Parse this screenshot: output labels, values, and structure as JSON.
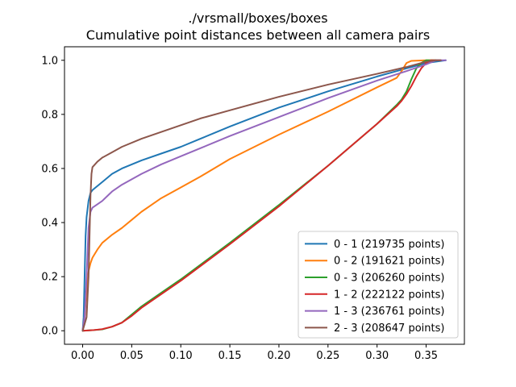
{
  "chart_data": {
    "type": "line",
    "title": "./vrsmall/boxes/boxes",
    "subtitle": "Cumulative point distances between all camera pairs",
    "xlabel": "",
    "ylabel": "",
    "xlim": [
      -0.0185,
      0.389
    ],
    "ylim": [
      -0.05,
      1.05
    ],
    "xticks": [
      0.0,
      0.05,
      0.1,
      0.15,
      0.2,
      0.25,
      0.3,
      0.35
    ],
    "xtick_labels": [
      "0.00",
      "0.05",
      "0.10",
      "0.15",
      "0.20",
      "0.25",
      "0.30",
      "0.35"
    ],
    "yticks": [
      0.0,
      0.2,
      0.4,
      0.6,
      0.8,
      1.0
    ],
    "ytick_labels": [
      "0.0",
      "0.2",
      "0.4",
      "0.6",
      "0.8",
      "1.0"
    ],
    "grid": false,
    "legend_position": "lower-right",
    "series": [
      {
        "name": "0 - 1 (219735 points)",
        "color": "#1f77b4",
        "points": [
          [
            0.0,
            0.0
          ],
          [
            0.001,
            0.05
          ],
          [
            0.002,
            0.2
          ],
          [
            0.003,
            0.35
          ],
          [
            0.004,
            0.42
          ],
          [
            0.006,
            0.48
          ],
          [
            0.008,
            0.51
          ],
          [
            0.01,
            0.52
          ],
          [
            0.02,
            0.55
          ],
          [
            0.03,
            0.58
          ],
          [
            0.04,
            0.6
          ],
          [
            0.06,
            0.63
          ],
          [
            0.08,
            0.655
          ],
          [
            0.1,
            0.68
          ],
          [
            0.12,
            0.71
          ],
          [
            0.15,
            0.755
          ],
          [
            0.2,
            0.825
          ],
          [
            0.25,
            0.885
          ],
          [
            0.3,
            0.94
          ],
          [
            0.33,
            0.97
          ],
          [
            0.35,
            0.99
          ],
          [
            0.37,
            1.0
          ]
        ]
      },
      {
        "name": "0 - 2 (191621 points)",
        "color": "#ff7f0e",
        "points": [
          [
            0.0,
            0.0
          ],
          [
            0.002,
            0.05
          ],
          [
            0.004,
            0.15
          ],
          [
            0.006,
            0.22
          ],
          [
            0.008,
            0.25
          ],
          [
            0.01,
            0.27
          ],
          [
            0.015,
            0.3
          ],
          [
            0.02,
            0.325
          ],
          [
            0.03,
            0.355
          ],
          [
            0.04,
            0.38
          ],
          [
            0.05,
            0.41
          ],
          [
            0.06,
            0.44
          ],
          [
            0.08,
            0.49
          ],
          [
            0.1,
            0.53
          ],
          [
            0.12,
            0.57
          ],
          [
            0.15,
            0.635
          ],
          [
            0.2,
            0.725
          ],
          [
            0.25,
            0.81
          ],
          [
            0.3,
            0.9
          ],
          [
            0.32,
            0.935
          ],
          [
            0.325,
            0.96
          ],
          [
            0.33,
            0.99
          ],
          [
            0.335,
            0.998
          ],
          [
            0.35,
            1.0
          ],
          [
            0.36,
            1.0
          ]
        ]
      },
      {
        "name": "0 - 3 (206260 points)",
        "color": "#2ca02c",
        "points": [
          [
            0.0,
            0.0
          ],
          [
            0.01,
            0.002
          ],
          [
            0.02,
            0.005
          ],
          [
            0.03,
            0.015
          ],
          [
            0.04,
            0.03
          ],
          [
            0.05,
            0.06
          ],
          [
            0.06,
            0.09
          ],
          [
            0.08,
            0.14
          ],
          [
            0.1,
            0.19
          ],
          [
            0.15,
            0.325
          ],
          [
            0.2,
            0.465
          ],
          [
            0.25,
            0.61
          ],
          [
            0.3,
            0.765
          ],
          [
            0.32,
            0.835
          ],
          [
            0.325,
            0.855
          ],
          [
            0.33,
            0.885
          ],
          [
            0.335,
            0.93
          ],
          [
            0.34,
            0.97
          ],
          [
            0.345,
            0.99
          ],
          [
            0.35,
            1.0
          ],
          [
            0.36,
            1.0
          ]
        ]
      },
      {
        "name": "1 - 2 (222122 points)",
        "color": "#d62728",
        "points": [
          [
            0.0,
            0.0
          ],
          [
            0.01,
            0.002
          ],
          [
            0.02,
            0.006
          ],
          [
            0.03,
            0.015
          ],
          [
            0.04,
            0.03
          ],
          [
            0.05,
            0.055
          ],
          [
            0.06,
            0.085
          ],
          [
            0.08,
            0.135
          ],
          [
            0.1,
            0.185
          ],
          [
            0.15,
            0.32
          ],
          [
            0.2,
            0.46
          ],
          [
            0.25,
            0.61
          ],
          [
            0.3,
            0.765
          ],
          [
            0.32,
            0.83
          ],
          [
            0.325,
            0.85
          ],
          [
            0.33,
            0.875
          ],
          [
            0.335,
            0.905
          ],
          [
            0.34,
            0.94
          ],
          [
            0.345,
            0.97
          ],
          [
            0.35,
            0.99
          ],
          [
            0.355,
            1.0
          ],
          [
            0.365,
            1.0
          ]
        ]
      },
      {
        "name": "1 - 3 (236761 points)",
        "color": "#9467bd",
        "points": [
          [
            0.0,
            0.0
          ],
          [
            0.002,
            0.05
          ],
          [
            0.004,
            0.2
          ],
          [
            0.006,
            0.38
          ],
          [
            0.008,
            0.44
          ],
          [
            0.01,
            0.455
          ],
          [
            0.02,
            0.48
          ],
          [
            0.03,
            0.515
          ],
          [
            0.04,
            0.54
          ],
          [
            0.06,
            0.58
          ],
          [
            0.08,
            0.615
          ],
          [
            0.1,
            0.645
          ],
          [
            0.12,
            0.675
          ],
          [
            0.15,
            0.72
          ],
          [
            0.2,
            0.79
          ],
          [
            0.25,
            0.86
          ],
          [
            0.3,
            0.925
          ],
          [
            0.33,
            0.96
          ],
          [
            0.35,
            0.985
          ],
          [
            0.36,
            1.0
          ],
          [
            0.37,
            1.0
          ]
        ]
      },
      {
        "name": "2 - 3 (208647 points)",
        "color": "#8c564b",
        "points": [
          [
            0.0,
            0.0
          ],
          [
            0.004,
            0.05
          ],
          [
            0.006,
            0.2
          ],
          [
            0.008,
            0.5
          ],
          [
            0.009,
            0.58
          ],
          [
            0.01,
            0.605
          ],
          [
            0.015,
            0.625
          ],
          [
            0.02,
            0.64
          ],
          [
            0.03,
            0.66
          ],
          [
            0.04,
            0.68
          ],
          [
            0.06,
            0.71
          ],
          [
            0.08,
            0.735
          ],
          [
            0.1,
            0.76
          ],
          [
            0.12,
            0.785
          ],
          [
            0.15,
            0.815
          ],
          [
            0.2,
            0.865
          ],
          [
            0.25,
            0.91
          ],
          [
            0.3,
            0.95
          ],
          [
            0.33,
            0.975
          ],
          [
            0.35,
            0.995
          ],
          [
            0.36,
            1.0
          ],
          [
            0.365,
            1.0
          ]
        ]
      }
    ]
  }
}
